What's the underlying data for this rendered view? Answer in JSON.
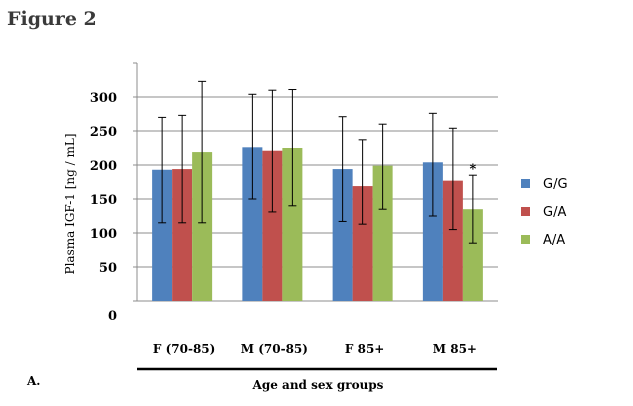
{
  "figure": {
    "title": "Figure 2",
    "panel_label": "A."
  },
  "chart_data": {
    "type": "bar",
    "categories": [
      "F (70-85)",
      "M (70-85)",
      "F 85+",
      "M 85+"
    ],
    "series": [
      {
        "name": "G/G",
        "color": "#4f81bd",
        "values": [
          193,
          226,
          194,
          204
        ],
        "err_low": [
          115,
          150,
          117,
          125
        ],
        "err_high": [
          270,
          304,
          271,
          276
        ]
      },
      {
        "name": "G/A",
        "color": "#c0504d",
        "values": [
          194,
          221,
          169,
          177
        ],
        "err_low": [
          115,
          131,
          113,
          105
        ],
        "err_high": [
          273,
          310,
          237,
          254
        ]
      },
      {
        "name": "A/A",
        "color": "#9bbb59",
        "values": [
          219,
          225,
          199,
          135
        ],
        "err_low": [
          115,
          140,
          135,
          85
        ],
        "err_high": [
          323,
          311,
          260,
          185
        ]
      }
    ],
    "annotations": [
      {
        "category": "M 85+",
        "series": "A/A",
        "text": "*"
      }
    ],
    "ylim": [
      0,
      350
    ],
    "yticks": [
      0,
      50,
      100,
      150,
      200,
      250,
      300
    ],
    "ylabel": "Plasma IGF-1 [ng / mL]",
    "xlabel": "Age and sex groups",
    "grid": true,
    "legend": "right"
  }
}
